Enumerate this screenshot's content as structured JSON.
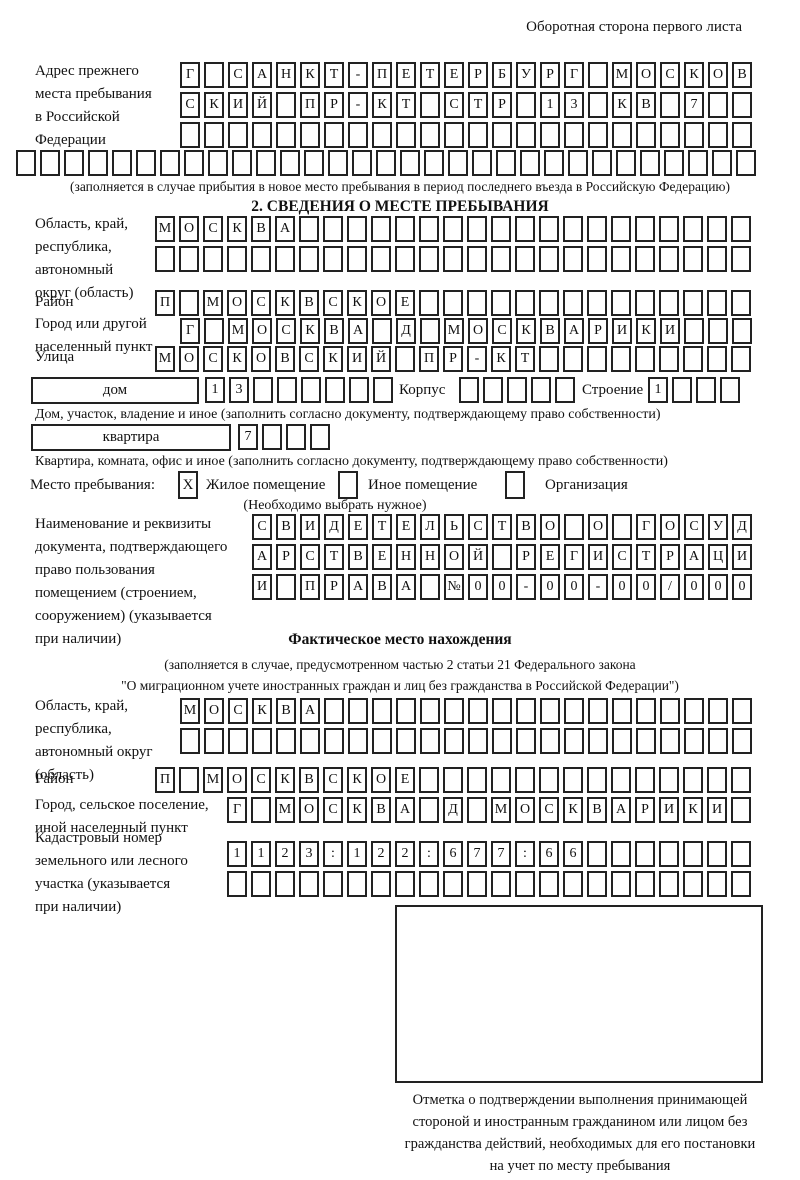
{
  "header": {
    "side_note": "Оборотная сторона первого листа"
  },
  "prev_address": {
    "label_lines": [
      "Адрес прежнего",
      "места пребывания",
      "в Российской",
      "Федерации"
    ],
    "row1": [
      "Г",
      "",
      "С",
      "А",
      "Н",
      "К",
      "Т",
      "-",
      "П",
      "Е",
      "Т",
      "Е",
      "Р",
      "Б",
      "У",
      "Р",
      "Г",
      "",
      "М",
      "О",
      "С",
      "К",
      "О",
      "В"
    ],
    "row2": [
      "С",
      "К",
      "И",
      "Й",
      "",
      "П",
      "Р",
      "-",
      "К",
      "Т",
      "",
      "С",
      "Т",
      "Р",
      "",
      "1",
      "3",
      "",
      "К",
      "В",
      "",
      "7",
      "",
      ""
    ],
    "row3": [
      "",
      "",
      "",
      "",
      "",
      "",
      "",
      "",
      "",
      "",
      "",
      "",
      "",
      "",
      "",
      "",
      "",
      "",
      "",
      "",
      "",
      "",
      "",
      ""
    ],
    "row4": [
      "",
      "",
      "",
      "",
      "",
      "",
      "",
      "",
      "",
      "",
      "",
      "",
      "",
      "",
      "",
      "",
      "",
      "",
      "",
      "",
      "",
      "",
      "",
      "",
      "",
      "",
      "",
      "",
      "",
      "",
      ""
    ],
    "note": "(заполняется в случае прибытия в новое место пребывания в период последнего въезда в Российскую Федерацию)"
  },
  "section2": {
    "title": "2. СВЕДЕНИЯ О МЕСТЕ ПРЕБЫВАНИЯ",
    "region": {
      "label_lines": [
        "Область, край,",
        "республика,",
        "автономный",
        "округ (область)"
      ],
      "row1": [
        "М",
        "О",
        "С",
        "К",
        "В",
        "А",
        "",
        "",
        "",
        "",
        "",
        "",
        "",
        "",
        "",
        "",
        "",
        "",
        "",
        "",
        "",
        "",
        "",
        "",
        ""
      ],
      "row2": [
        "",
        "",
        "",
        "",
        "",
        "",
        "",
        "",
        "",
        "",
        "",
        "",
        "",
        "",
        "",
        "",
        "",
        "",
        "",
        "",
        "",
        "",
        "",
        "",
        ""
      ]
    },
    "district": {
      "label": "Район",
      "row": [
        "П",
        "",
        "М",
        "О",
        "С",
        "К",
        "В",
        "С",
        "К",
        "О",
        "Е",
        "",
        "",
        "",
        "",
        "",
        "",
        "",
        "",
        "",
        "",
        "",
        "",
        "",
        ""
      ]
    },
    "city": {
      "label_lines": [
        "Город или другой",
        "населенный пункт"
      ],
      "row": [
        "Г",
        "",
        "М",
        "О",
        "С",
        "К",
        "В",
        "А",
        "",
        "Д",
        "",
        "М",
        "О",
        "С",
        "К",
        "В",
        "А",
        "Р",
        "И",
        "К",
        "И",
        "",
        "",
        ""
      ]
    },
    "street": {
      "label": "Улица",
      "row": [
        "М",
        "О",
        "С",
        "К",
        "О",
        "В",
        "С",
        "К",
        "И",
        "Й",
        "",
        "П",
        "Р",
        "-",
        "К",
        "Т",
        "",
        "",
        "",
        "",
        "",
        "",
        "",
        "",
        ""
      ]
    },
    "house": {
      "box_label": "дом",
      "cells": [
        "1",
        "3",
        "",
        "",
        "",
        "",
        "",
        ""
      ],
      "korpus_label": "Корпус",
      "korpus_cells": [
        "",
        "",
        "",
        "",
        ""
      ],
      "stroenie_label": "Строение",
      "stroenie_cells": [
        "1",
        "",
        "",
        ""
      ]
    },
    "house_caption": "Дом, участок, владение и иное (заполнить согласно документу, подтверждающему право собственности)",
    "apartment": {
      "box_label": "квартира",
      "cells": [
        "7",
        "",
        "",
        ""
      ]
    },
    "apartment_caption": "Квартира, комната, офис и иное (заполнить согласно документу, подтверждающему право собственности)",
    "stay_type": {
      "label": "Место пребывания:",
      "options": [
        {
          "label": "Жилое помещение",
          "mark": "X"
        },
        {
          "label": "Иное помещение",
          "mark": ""
        },
        {
          "label": "Организация",
          "mark": ""
        }
      ],
      "note": "(Необходимо выбрать нужное)"
    },
    "document": {
      "label_lines": [
        "Наименование и реквизиты",
        "документа, подтверждающего",
        "право пользования",
        "помещением (строением,",
        "сооружением) (указывается",
        "при наличии)"
      ],
      "row1": [
        "С",
        "В",
        "И",
        "Д",
        "Е",
        "Т",
        "Е",
        "Л",
        "Ь",
        "С",
        "Т",
        "В",
        "О",
        "",
        "О",
        "",
        "Г",
        "О",
        "С",
        "У",
        "Д"
      ],
      "row2": [
        "А",
        "Р",
        "С",
        "Т",
        "В",
        "Е",
        "Н",
        "Н",
        "О",
        "Й",
        "",
        "Р",
        "Е",
        "Г",
        "И",
        "С",
        "Т",
        "Р",
        "А",
        "Ц",
        "И"
      ],
      "row3": [
        "И",
        "",
        "П",
        "Р",
        "А",
        "В",
        "А",
        "",
        "№",
        "0",
        "0",
        "-",
        "0",
        "0",
        "-",
        "0",
        "0",
        "/",
        "0",
        "0",
        "0"
      ]
    }
  },
  "actual_location": {
    "title": "Фактическое место нахождения",
    "note_lines": [
      "(заполняется в случае, предусмотренном частью 2 статьи 21 Федерального закона",
      "\"О миграционном учете иностранных граждан и лиц без гражданства в Российской Федерации\")"
    ],
    "region": {
      "label_lines": [
        "Область, край,",
        "республика,",
        "автономный округ",
        "(область)"
      ],
      "row1": [
        "М",
        "О",
        "С",
        "К",
        "В",
        "А",
        "",
        "",
        "",
        "",
        "",
        "",
        "",
        "",
        "",
        "",
        "",
        "",
        "",
        "",
        "",
        "",
        "",
        ""
      ],
      "row2": [
        "",
        "",
        "",
        "",
        "",
        "",
        "",
        "",
        "",
        "",
        "",
        "",
        "",
        "",
        "",
        "",
        "",
        "",
        "",
        "",
        "",
        "",
        "",
        ""
      ]
    },
    "district": {
      "label": "Район",
      "row": [
        "П",
        "",
        "М",
        "О",
        "С",
        "К",
        "В",
        "С",
        "К",
        "О",
        "Е",
        "",
        "",
        "",
        "",
        "",
        "",
        "",
        "",
        "",
        "",
        "",
        "",
        "",
        ""
      ]
    },
    "city": {
      "label_lines": [
        "Город, сельское поселение,",
        "иной населенный пункт"
      ],
      "row": [
        "Г",
        "",
        "М",
        "О",
        "С",
        "К",
        "В",
        "А",
        "",
        "Д",
        "",
        "М",
        "О",
        "С",
        "К",
        "В",
        "А",
        "Р",
        "И",
        "К",
        "И",
        ""
      ]
    },
    "cadastral": {
      "label_lines": [
        "Кадастровый номер",
        "земельного или лесного",
        "участка (указывается",
        "при наличии)"
      ],
      "row1": [
        "1",
        "1",
        "2",
        "3",
        ":",
        "1",
        "2",
        "2",
        ":",
        "6",
        "7",
        "7",
        ":",
        "6",
        "6",
        "",
        "",
        "",
        "",
        "",
        "",
        ""
      ],
      "row2": [
        "",
        "",
        "",
        "",
        "",
        "",
        "",
        "",
        "",
        "",
        "",
        "",
        "",
        "",
        "",
        "",
        "",
        "",
        "",
        "",
        "",
        ""
      ]
    },
    "stamp_caption_lines": [
      "Отметка о подтверждении выполнения принимающей",
      "стороной и иностранным гражданином или лицом без",
      "гражданства действий, необходимых для его постановки",
      "на учет по месту пребывания"
    ]
  }
}
